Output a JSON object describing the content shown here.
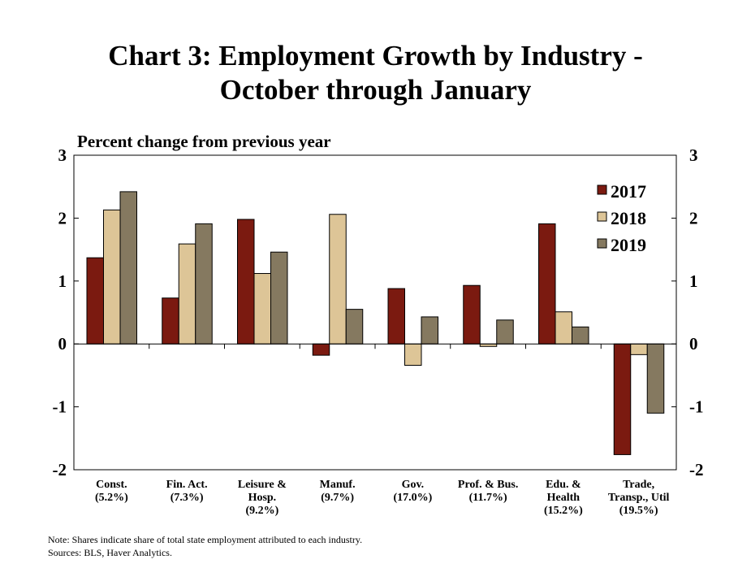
{
  "chart_data": {
    "type": "bar",
    "title": [
      "Chart 3: Employment Growth by Industry -",
      "October through January"
    ],
    "ylabel": "Percent change from previous year",
    "ylim": [
      -2,
      3
    ],
    "yticks": [
      "3",
      "2",
      "1",
      "0",
      "-1",
      "-2"
    ],
    "y_axis_sides": "left and right",
    "grid": false,
    "legend_position": "top-right",
    "categories": [
      [
        "Const.",
        "(5.2%)"
      ],
      [
        "Fin. Act.",
        "(7.3%)"
      ],
      [
        "Leisure &",
        "Hosp.",
        "(9.2%)"
      ],
      [
        "Manuf.",
        "(9.7%)"
      ],
      [
        "Gov.",
        "(17.0%)"
      ],
      [
        "Prof. & Bus.",
        "(11.7%)"
      ],
      [
        "Edu. &",
        "Health",
        "(15.2%)"
      ],
      [
        "Trade,",
        "Transp., Util",
        "(19.5%)"
      ]
    ],
    "series": [
      {
        "name": "2017",
        "color": "#7b1a10",
        "values": [
          1.37,
          0.73,
          1.98,
          -0.18,
          0.88,
          0.93,
          1.91,
          -1.76
        ]
      },
      {
        "name": "2018",
        "color": "#ddc597",
        "values": [
          2.13,
          1.59,
          1.12,
          2.06,
          -0.34,
          -0.04,
          0.51,
          -0.17
        ]
      },
      {
        "name": "2019",
        "color": "#857960",
        "values": [
          2.42,
          1.91,
          1.46,
          0.55,
          0.43,
          0.38,
          0.27,
          -1.1
        ]
      }
    ]
  },
  "notes": [
    "Note: Shares indicate share of total state employment attributed to each industry.",
    "Sources: BLS, Haver Analytics."
  ]
}
